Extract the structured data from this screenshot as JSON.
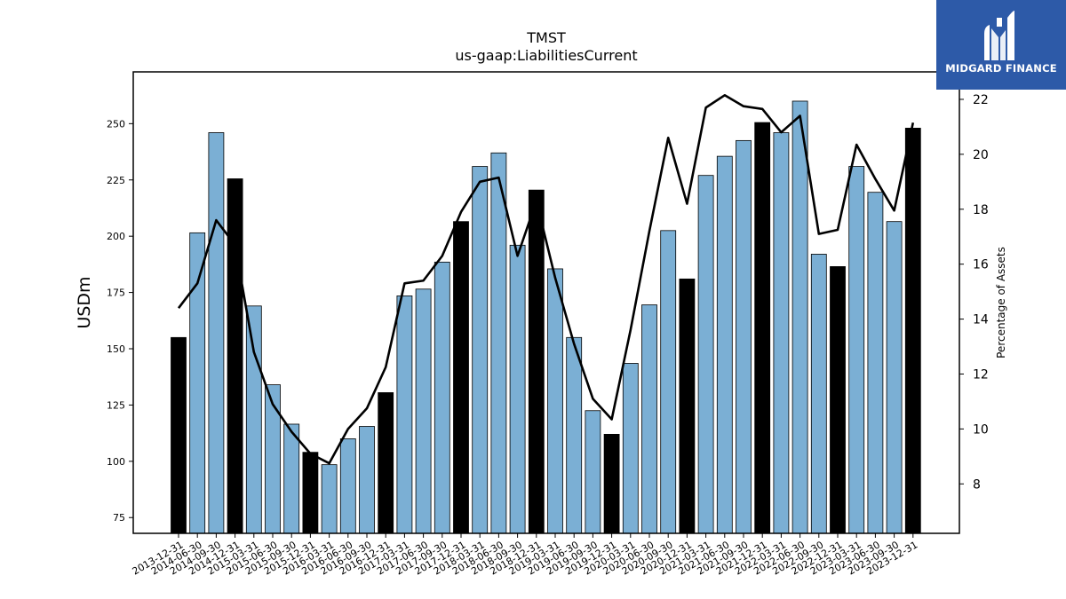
{
  "chart_data": {
    "type": "bar",
    "title": "TMST",
    "subtitle": "us-gaap:LiabilitiesCurrent",
    "ylabel": "USDm",
    "y2label": "Percentage of Assets",
    "ylim": [
      68,
      273
    ],
    "y2lim": [
      6.2,
      23.0
    ],
    "yticks": [
      75,
      100,
      125,
      150,
      175,
      200,
      225,
      250
    ],
    "y2ticks": [
      8,
      10,
      12,
      14,
      16,
      18,
      20,
      22
    ],
    "categories": [
      "2013-12-31",
      "2014-06-30",
      "2014-09-30",
      "2014-12-31",
      "2015-03-31",
      "2015-06-30",
      "2015-09-30",
      "2015-12-31",
      "2016-03-31",
      "2016-06-30",
      "2016-09-30",
      "2016-12-31",
      "2017-03-31",
      "2017-06-30",
      "2017-09-30",
      "2017-12-31",
      "2018-03-31",
      "2018-06-30",
      "2018-09-30",
      "2018-12-31",
      "2019-03-31",
      "2019-06-30",
      "2019-09-30",
      "2019-12-31",
      "2020-03-31",
      "2020-06-30",
      "2020-09-30",
      "2020-12-31",
      "2021-03-31",
      "2021-06-30",
      "2021-09-30",
      "2021-12-31",
      "2022-03-31",
      "2022-06-30",
      "2022-09-30",
      "2022-12-31",
      "2023-03-31",
      "2023-06-30",
      "2023-09-30",
      "2023-12-31"
    ],
    "values": [
      155,
      201.5,
      246,
      225.5,
      169,
      134,
      116.5,
      104,
      98.5,
      110,
      115.5,
      130.5,
      173.5,
      176.5,
      188.5,
      206.5,
      231,
      237,
      196,
      220.5,
      185.5,
      155,
      122.5,
      112,
      143.5,
      169.5,
      202.5,
      181,
      227,
      235.5,
      242.5,
      250.5,
      246,
      260,
      192,
      186.5,
      231,
      219.5,
      206.5,
      248
    ],
    "year_end": [
      true,
      false,
      false,
      true,
      false,
      false,
      false,
      true,
      false,
      false,
      false,
      true,
      false,
      false,
      false,
      true,
      false,
      false,
      false,
      true,
      false,
      false,
      false,
      true,
      false,
      false,
      false,
      true,
      false,
      false,
      false,
      true,
      false,
      false,
      false,
      true,
      false,
      false,
      false,
      true
    ],
    "series": [
      {
        "name": "",
        "axis": "right",
        "values": [
          14.4,
          15.3,
          17.6,
          16.7,
          12.8,
          10.9,
          9.9,
          9.1,
          8.75,
          10.0,
          10.75,
          12.25,
          15.3,
          15.4,
          16.3,
          17.9,
          19.0,
          19.15,
          16.3,
          18.3,
          15.5,
          13.1,
          11.1,
          10.35,
          13.6,
          17.2,
          20.6,
          18.2,
          21.7,
          22.15,
          21.75,
          21.65,
          20.8,
          21.4,
          17.1,
          17.25,
          20.35,
          19.1,
          17.95,
          21.15
        ]
      }
    ],
    "colors": {
      "bar": "#7bafd4",
      "bar_year_end": "#000000",
      "bar_edge": "#000000",
      "line": "#000000"
    },
    "grid": false
  },
  "logo": {
    "text": "MIDGARD FINANCE"
  }
}
